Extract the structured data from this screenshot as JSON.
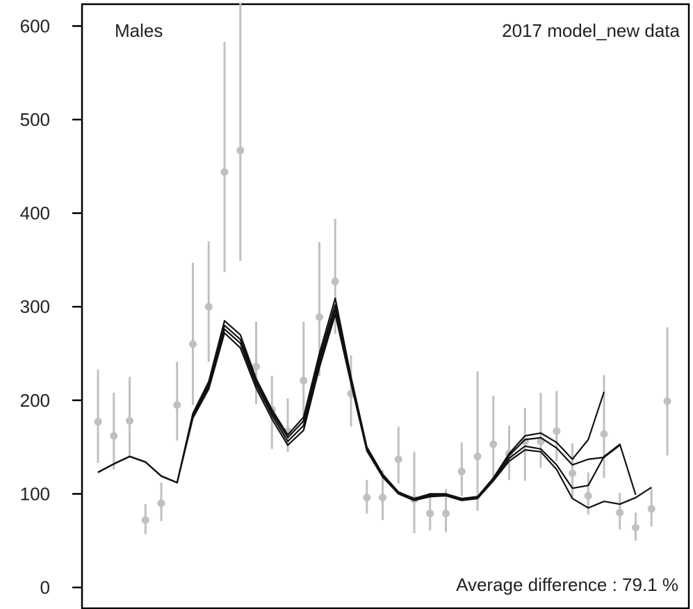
{
  "chart_data": {
    "type": "line",
    "panel_label": "Males",
    "model_label": "2017 model_new data",
    "footer_label": "Average difference :  79.1 %",
    "ylim": [
      0,
      630
    ],
    "yticks": [
      0,
      100,
      200,
      300,
      400,
      500,
      600
    ],
    "xlim": [
      0,
      37
    ],
    "grid": false,
    "colors": {
      "observed": "#c0c0c0",
      "model": "#111111",
      "axis": "#000000"
    },
    "observed": [
      {
        "x": 1,
        "y": 177,
        "lo": 133,
        "hi": 233
      },
      {
        "x": 2,
        "y": 162,
        "lo": 126,
        "hi": 208
      },
      {
        "x": 3,
        "y": 178,
        "lo": 140,
        "hi": 225
      },
      {
        "x": 4,
        "y": 72,
        "lo": 57,
        "hi": 89
      },
      {
        "x": 5,
        "y": 90,
        "lo": 71,
        "hi": 112
      },
      {
        "x": 6,
        "y": 195,
        "lo": 157,
        "hi": 241
      },
      {
        "x": 7,
        "y": 260,
        "lo": 195,
        "hi": 347
      },
      {
        "x": 8,
        "y": 300,
        "lo": 241,
        "hi": 370
      },
      {
        "x": 9,
        "y": 444,
        "lo": 337,
        "hi": 583
      },
      {
        "x": 10,
        "y": 467,
        "lo": 349,
        "hi": 625
      },
      {
        "x": 11,
        "y": 236,
        "lo": 196,
        "hi": 284
      },
      {
        "x": 12,
        "y": 190,
        "lo": 148,
        "hi": 226
      },
      {
        "x": 13,
        "y": 167,
        "lo": 145,
        "hi": 202
      },
      {
        "x": 14,
        "y": 221,
        "lo": 170,
        "hi": 284
      },
      {
        "x": 15,
        "y": 289,
        "lo": 226,
        "hi": 369
      },
      {
        "x": 16,
        "y": 327,
        "lo": 271,
        "hi": 394
      },
      {
        "x": 17,
        "y": 207,
        "lo": 172,
        "hi": 248
      },
      {
        "x": 18,
        "y": 96,
        "lo": 79,
        "hi": 115
      },
      {
        "x": 19,
        "y": 96,
        "lo": 72,
        "hi": 125
      },
      {
        "x": 20,
        "y": 137,
        "lo": 111,
        "hi": 172
      },
      {
        "x": 21,
        "y": 94,
        "lo": 58,
        "hi": 145
      },
      {
        "x": 22,
        "y": 79,
        "lo": 61,
        "hi": 101
      },
      {
        "x": 23,
        "y": 79,
        "lo": 59,
        "hi": 105
      },
      {
        "x": 24,
        "y": 124,
        "lo": 98,
        "hi": 155
      },
      {
        "x": 25,
        "y": 140,
        "lo": 82,
        "hi": 231
      },
      {
        "x": 26,
        "y": 153,
        "lo": 114,
        "hi": 205
      },
      {
        "x": 27,
        "y": 143,
        "lo": 115,
        "hi": 173
      },
      {
        "x": 28,
        "y": 156,
        "lo": 114,
        "hi": 192
      },
      {
        "x": 29,
        "y": 156,
        "lo": 128,
        "hi": 208
      },
      {
        "x": 30,
        "y": 167,
        "lo": 135,
        "hi": 210
      },
      {
        "x": 31,
        "y": 122,
        "lo": 96,
        "hi": 154
      },
      {
        "x": 32,
        "y": 98,
        "lo": 78,
        "hi": 123
      },
      {
        "x": 33,
        "y": 164,
        "lo": 117,
        "hi": 227
      },
      {
        "x": 34,
        "y": 80,
        "lo": 62,
        "hi": 101
      },
      {
        "x": 35,
        "y": 64,
        "lo": 50,
        "hi": 80
      },
      {
        "x": 36,
        "y": 84,
        "lo": 65,
        "hi": 106
      },
      {
        "x": 37,
        "y": 199,
        "lo": 141,
        "hi": 278
      }
    ],
    "series": [
      {
        "x": [
          1,
          2,
          3,
          4,
          5,
          6,
          7,
          8,
          9,
          10,
          11,
          12,
          13,
          14,
          15,
          16,
          17,
          18,
          19,
          20,
          21,
          22,
          23,
          24,
          25,
          26,
          27,
          28,
          29,
          30,
          31,
          32,
          33
        ],
        "values": [
          123,
          132,
          140,
          134,
          119,
          112,
          186,
          220,
          285,
          270,
          223,
          190,
          163,
          182,
          250,
          309,
          225,
          150,
          121,
          102,
          95,
          100,
          100,
          95,
          97,
          117,
          143,
          162,
          165,
          155,
          137,
          158,
          209
        ]
      },
      {
        "x": [
          1,
          2,
          3,
          4,
          5,
          6,
          7,
          8,
          9,
          10,
          11,
          12,
          13,
          14,
          15,
          16,
          17,
          18,
          19,
          20,
          21,
          22,
          23,
          24,
          25,
          26,
          27,
          28,
          29,
          30,
          31,
          32,
          33,
          34
        ],
        "values": [
          123,
          132,
          140,
          134,
          119,
          112,
          184,
          218,
          280,
          265,
          220,
          187,
          160,
          178,
          245,
          302,
          222,
          148,
          120,
          101,
          94,
          99,
          99,
          94,
          96,
          116,
          141,
          158,
          160,
          149,
          131,
          137,
          139,
          152
        ]
      },
      {
        "x": [
          1,
          2,
          3,
          4,
          5,
          6,
          7,
          8,
          9,
          10,
          11,
          12,
          13,
          14,
          15,
          16,
          17,
          18,
          19,
          20,
          21,
          22,
          23,
          24,
          25,
          26,
          27,
          28,
          29,
          30,
          31,
          32,
          33,
          34,
          35
        ],
        "values": [
          123,
          132,
          140,
          134,
          119,
          112,
          182,
          215,
          276,
          261,
          217,
          184,
          156,
          173,
          240,
          297,
          220,
          147,
          119,
          100,
          93,
          98,
          99,
          94,
          96,
          115,
          138,
          151,
          148,
          131,
          106,
          109,
          140,
          153,
          99
        ]
      },
      {
        "x": [
          1,
          2,
          3,
          4,
          5,
          6,
          7,
          8,
          9,
          10,
          11,
          12,
          13,
          14,
          15,
          16,
          17,
          18,
          19,
          20,
          21,
          22,
          23,
          24,
          25,
          26,
          27,
          28,
          29,
          30,
          31,
          32,
          33,
          34,
          35,
          36
        ],
        "values": [
          123,
          132,
          140,
          134,
          119,
          112,
          181,
          212,
          272,
          256,
          213,
          180,
          152,
          168,
          235,
          292,
          218,
          146,
          118,
          100,
          93,
          97,
          98,
          93,
          95,
          114,
          135,
          147,
          145,
          126,
          95,
          85,
          92,
          89,
          96,
          107
        ]
      }
    ]
  }
}
